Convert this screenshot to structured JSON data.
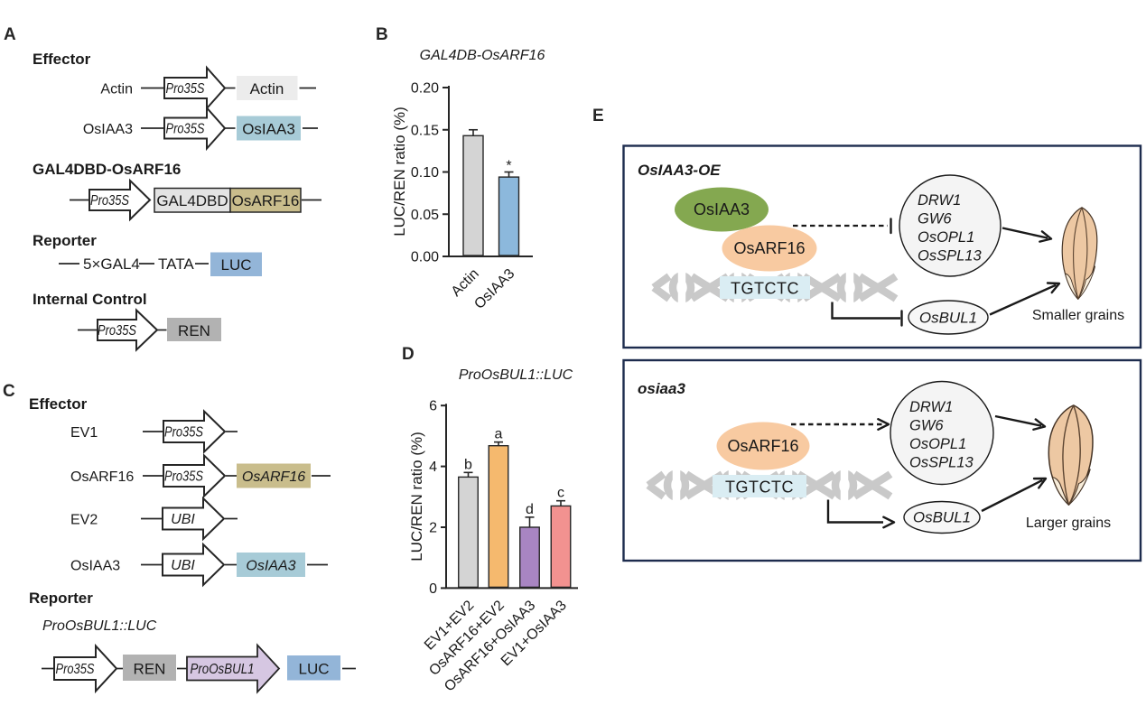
{
  "colors": {
    "gene_box_lightgray": "#ececec",
    "gene_box_blue": "#a7cbd7",
    "gal4dbd_gray": "#e3e3e3",
    "osarf16_tan": "#c9bd8c",
    "luc_blue": "#93b5d8",
    "ren_gray": "#b2b2b2",
    "proosbul1_lavender": "#d6c7e2",
    "osiaa3_green": "#84a850",
    "osarf16_orange": "#f8caa1",
    "dna_site_blue": "#daedf3",
    "circle_fill": "#f4f4f4",
    "panel_border_navy": "#1d2c4e",
    "helix_gray": "#c9c9c9",
    "grain_tan": "#edc8a3",
    "grain_cream": "#f7ecd9"
  },
  "panels": {
    "A": {
      "label": "A",
      "effector_heading": "Effector",
      "rows": [
        {
          "label": "Actin",
          "promoter": "Pro35S",
          "gene": "Actin"
        },
        {
          "label": "OsIAA3",
          "promoter": "Pro35S",
          "gene": "OsIAA3"
        }
      ],
      "gal4_heading": "GAL4DBD-OsARF16",
      "gal4_row": {
        "promoter": "Pro35S",
        "box1": "GAL4DBD",
        "box2": "OsARF16"
      },
      "reporter_heading": "Reporter",
      "reporter_row": {
        "el1": "5×GAL4",
        "el2": "TATA",
        "gene": "LUC"
      },
      "internal_heading": "Internal Control",
      "internal_row": {
        "promoter": "Pro35S",
        "gene": "REN"
      }
    },
    "B": {
      "label": "B"
    },
    "C": {
      "label": "C",
      "effector_heading": "Effector",
      "rows": [
        {
          "label": "EV1",
          "promoter": "Pro35S",
          "gene": ""
        },
        {
          "label": "OsARF16",
          "promoter": "Pro35S",
          "gene": "OsARF16"
        },
        {
          "label": "EV2",
          "promoter": "UBI",
          "gene": ""
        },
        {
          "label": "OsIAA3",
          "promoter": "UBI",
          "gene": "OsIAA3"
        }
      ],
      "reporter_heading": "Reporter",
      "reporter_subtitle": "ProOsBUL1::LUC",
      "reporter_row": {
        "promoter": "Pro35S",
        "box1": "REN",
        "box2": "ProOsBUL1",
        "box3": "LUC"
      }
    },
    "D": {
      "label": "D"
    },
    "E": {
      "label": "E",
      "box1": {
        "title": "OsIAA3-OE",
        "protein1": "OsIAA3",
        "protein2": "OsARF16",
        "dna_site": "TGTCTC",
        "genes": [
          "DRW1",
          "GW6",
          "OsOPL1",
          "OsSPL13"
        ],
        "target_gene": "OsBUL1",
        "caption": "Smaller grains"
      },
      "box2": {
        "title": "osiaa3",
        "protein": "OsARF16",
        "dna_site": "TGTCTC",
        "genes": [
          "DRW1",
          "GW6",
          "OsOPL1",
          "OsSPL13"
        ],
        "target_gene": "OsBUL1",
        "caption": "Larger grains"
      }
    }
  },
  "chart_data": [
    {
      "panel": "B",
      "type": "bar",
      "title": "GAL4DB-OsARF16",
      "ylabel": "LUC/REN ratio (%)",
      "categories": [
        "Actin",
        "OsIAA3"
      ],
      "values": [
        0.143,
        0.094
      ],
      "errors": [
        0.007,
        0.006
      ],
      "sig_labels": [
        "",
        "*"
      ],
      "bar_colors": [
        "#d4d4d4",
        "#8cb8dc"
      ],
      "ylim": [
        0,
        0.2
      ],
      "yticks": [
        0,
        0.05,
        0.1,
        0.15,
        0.2
      ],
      "ytick_labels": [
        "0.00",
        "0.05",
        "0.10",
        "0.15",
        "0.20"
      ]
    },
    {
      "panel": "D",
      "type": "bar",
      "title": "ProOsBUL1::LUC",
      "ylabel": "LUC/REN ratio (%)",
      "categories": [
        "EV1+EV2",
        "OsARF16+EV2",
        "OsARF16+OsIAA3",
        "EV1+OsIAA3"
      ],
      "values": [
        3.65,
        4.68,
        2.0,
        2.7
      ],
      "errors": [
        0.15,
        0.12,
        0.33,
        0.17
      ],
      "sig_labels": [
        "b",
        "a",
        "d",
        "c"
      ],
      "bar_colors": [
        "#d4d4d4",
        "#f5b96e",
        "#a885c2",
        "#f29290"
      ],
      "ylim": [
        0,
        6
      ],
      "yticks": [
        0,
        2,
        4,
        6
      ],
      "ytick_labels": [
        "0",
        "2",
        "4",
        "6"
      ]
    }
  ]
}
